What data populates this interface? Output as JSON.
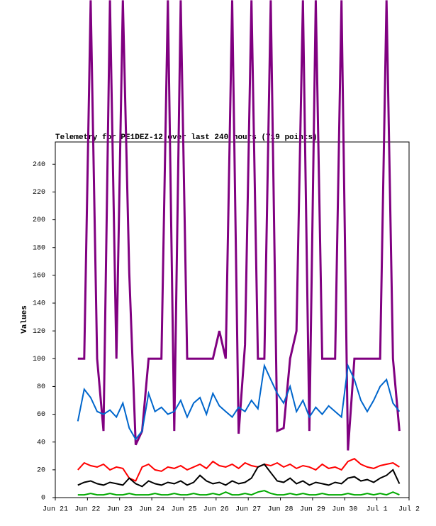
{
  "chart_data": {
    "type": "line",
    "title": "Telemetry for PE1DEZ-12 over last 240 hours (719 points)",
    "y_label": "Values",
    "x": [
      0.7,
      0.9,
      1.1,
      1.3,
      1.5,
      1.7,
      1.9,
      2.1,
      2.3,
      2.5,
      2.7,
      2.9,
      3.1,
      3.3,
      3.5,
      3.7,
      3.9,
      4.1,
      4.3,
      4.5,
      4.7,
      4.9,
      5.1,
      5.3,
      5.5,
      5.7,
      5.9,
      6.1,
      6.3,
      6.5,
      6.7,
      6.9,
      7.1,
      7.3,
      7.5,
      7.7,
      7.9,
      8.1,
      8.3,
      8.5,
      8.7,
      8.9,
      9.1,
      9.3,
      9.5,
      9.7,
      9.9,
      10.1,
      10.3,
      10.5,
      10.7
    ],
    "xlim": [
      0,
      11
    ],
    "xticks": [
      {
        "value": 0,
        "label": "Jun 21"
      },
      {
        "value": 1,
        "label": "Jun 22"
      },
      {
        "value": 2,
        "label": "Jun 23"
      },
      {
        "value": 3,
        "label": "Jun 24"
      },
      {
        "value": 4,
        "label": "Jun 25"
      },
      {
        "value": 5,
        "label": "Jun 26"
      },
      {
        "value": 6,
        "label": "Jun 27"
      },
      {
        "value": 7,
        "label": "Jun 28"
      },
      {
        "value": 8,
        "label": "Jun 29"
      },
      {
        "value": 9,
        "label": "Jun 30"
      },
      {
        "value": 10,
        "label": "Jul 1"
      },
      {
        "value": 11,
        "label": "Jul 2"
      }
    ],
    "ylim": [
      0,
      256
    ],
    "yticks": [
      0,
      20,
      40,
      60,
      80,
      100,
      120,
      140,
      160,
      180,
      200,
      220,
      240
    ],
    "series": [
      {
        "color": "#800080",
        "values": [
          100,
          100,
          358,
          100,
          48,
          358,
          100,
          358,
          162,
          38,
          48,
          100,
          100,
          100,
          358,
          48,
          358,
          100,
          100,
          100,
          100,
          100,
          120,
          100,
          358,
          46,
          110,
          358,
          100,
          100,
          358,
          48,
          50,
          100,
          120,
          358,
          48,
          358,
          100,
          100,
          100,
          358,
          34,
          100,
          100,
          100,
          100,
          100,
          358,
          100,
          48
        ]
      },
      {
        "color": "#0066cc",
        "values": [
          55,
          78,
          72,
          62,
          60,
          63,
          58,
          68,
          50,
          42,
          48,
          75,
          62,
          65,
          60,
          62,
          70,
          58,
          68,
          72,
          60,
          75,
          66,
          62,
          58,
          65,
          62,
          70,
          64,
          95,
          85,
          75,
          68,
          80,
          62,
          70,
          58,
          65,
          60,
          66,
          62,
          58,
          95,
          85,
          70,
          62,
          70,
          80,
          85,
          68,
          62
        ]
      },
      {
        "color": "#ff0000",
        "values": [
          20,
          25,
          23,
          22,
          24,
          20,
          22,
          21,
          14,
          12,
          22,
          24,
          20,
          19,
          22,
          21,
          23,
          20,
          22,
          24,
          21,
          26,
          23,
          22,
          24,
          21,
          25,
          23,
          22,
          24,
          23,
          25,
          22,
          24,
          21,
          23,
          22,
          20,
          24,
          21,
          22,
          20,
          26,
          28,
          24,
          22,
          21,
          23,
          24,
          25,
          22
        ]
      },
      {
        "color": "#000000",
        "values": [
          9,
          11,
          12,
          10,
          9,
          11,
          10,
          9,
          14,
          10,
          8,
          12,
          10,
          9,
          11,
          10,
          12,
          9,
          11,
          16,
          12,
          10,
          11,
          9,
          12,
          10,
          11,
          14,
          22,
          24,
          18,
          12,
          11,
          14,
          10,
          12,
          9,
          11,
          10,
          9,
          11,
          10,
          14,
          15,
          12,
          13,
          11,
          14,
          16,
          20,
          10
        ]
      },
      {
        "color": "#00aa00",
        "values": [
          2,
          2,
          3,
          2,
          2,
          3,
          2,
          2,
          3,
          2,
          2,
          2,
          3,
          2,
          2,
          3,
          2,
          2,
          3,
          2,
          2,
          3,
          2,
          4,
          2,
          2,
          3,
          2,
          4,
          5,
          3,
          2,
          2,
          3,
          2,
          3,
          2,
          2,
          3,
          2,
          2,
          2,
          3,
          2,
          2,
          3,
          2,
          3,
          2,
          4,
          2
        ]
      }
    ]
  }
}
